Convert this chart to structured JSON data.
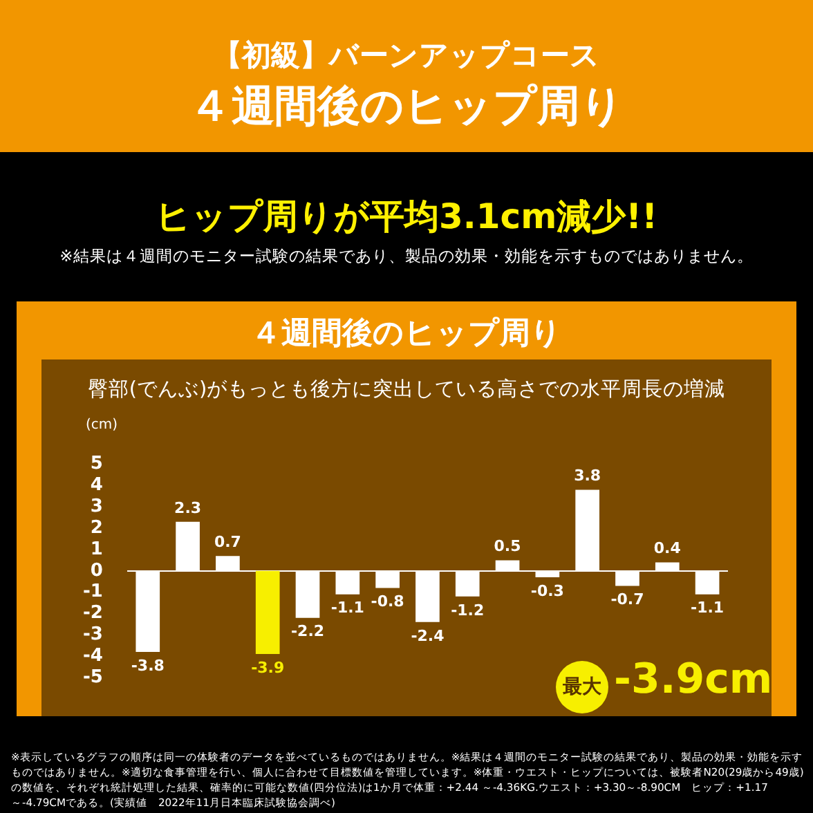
{
  "chart_data": {
    "type": "bar",
    "title": "【初級】バーンアップコース",
    "subtitle": "４週間後のヒップ周り",
    "ylabel": "(cm)",
    "annotations": [
      "ヒップ周りが平均3.1cm減少!!",
      "※結果は４週間のモニター試験の結果であり、製品の効果・効能を示すものではありません。",
      "４週間後のヒップ周り",
      "臀部(でんぶ)がもっとも後方に突出している高さでの水平周長の増減",
      "最大",
      "-3.9cm",
      "※表示しているグラフの順序は同一の体験者のデータを並べているものではありません。※結果は４週間のモニター試験の結果であり、製品の効果・効能を示すものではありません。※適切な食事管理を行い、個人に合わせて目標数値を管理しています。※体重・ウエスト・ヒップについては、被験者N20(29歳から49歳)の数値を、それぞれ統計処理した結果、確率的に可能な数値(四分位法)は1か月で体重：+2.44 ～-4.36KG.ウエスト：+3.30～-8.90CM　ヒップ：+1.17～-4.79CMである。(実績値　2022年11月日本臨床試験協会調べ)"
    ],
    "categories": [
      null,
      null,
      null,
      null,
      null,
      null,
      null,
      null,
      null,
      null,
      null,
      null,
      null,
      null,
      null
    ],
    "values": [
      -3.8,
      2.3,
      0.7,
      -3.9,
      -2.2,
      -1.1,
      -0.8,
      -2.4,
      -1.2,
      0.5,
      -0.3,
      3.8,
      -0.7,
      0.4,
      -1.1
    ],
    "colors": [
      "#ffffff",
      "#ffffff",
      "#ffffff",
      "#f7ef00",
      "#ffffff",
      "#ffffff",
      "#ffffff",
      "#ffffff",
      "#ffffff",
      "#ffffff",
      "#ffffff",
      "#ffffff",
      "#ffffff",
      "#ffffff",
      "#ffffff"
    ],
    "ylim": [
      -5,
      5
    ],
    "yticks": [
      -5,
      -4,
      -3,
      -2,
      -1,
      0,
      1,
      2,
      3,
      4,
      5
    ],
    "data_labels": true,
    "tick_labels": "y",
    "legend": false
  }
}
